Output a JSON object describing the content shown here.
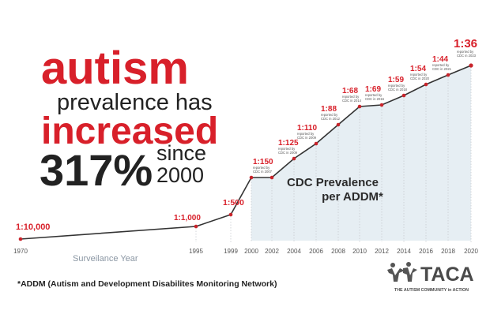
{
  "headline": {
    "word1": "autism",
    "line2": "prevalence has",
    "word3": "increased",
    "percent": "317%",
    "since": "since",
    "year": "2000"
  },
  "area_label_line1": "CDC Prevalence",
  "area_label_line2": "per ADDM*",
  "x_axis_label": "Surveilance Year",
  "footnote": "*ADDM (Autism and Development Disabilites Monitoring Network)",
  "logo": {
    "name": "TACA",
    "tagline": "THE AUTISM COMMUNITY in ACTION"
  },
  "colors": {
    "headline_red": "#d8202a",
    "headline_dark": "#222222",
    "line": "#333333",
    "marker": "#c8242b",
    "label_red": "#d8202a",
    "area": "#e6eef3",
    "axis_text": "#555555",
    "grid": "#c9ccd0"
  },
  "chart_data": {
    "type": "line",
    "title": "",
    "xlabel": "Surveilance Year",
    "ylabel": "",
    "x_ticks": [
      "1970",
      "1995",
      "1999",
      "2000",
      "2002",
      "2004",
      "2006",
      "2008",
      "2010",
      "2012",
      "2014",
      "2016",
      "2018",
      "2020"
    ],
    "series": [
      {
        "values": [
          {
            "x": "1970",
            "y": 0.0001,
            "label": "1:10,000",
            "note": ""
          },
          {
            "x": "1995",
            "y": 0.001,
            "label": "1:1,000",
            "note": ""
          },
          {
            "x": "1999",
            "y": 0.002,
            "label": "1:500",
            "note": ""
          },
          {
            "x": "2000",
            "y": 0.00667,
            "label": "1:150",
            "note": "reported by CDC in 2007"
          },
          {
            "x": "2002",
            "y": 0.00667,
            "label": "",
            "note": ""
          },
          {
            "x": "2004",
            "y": 0.008,
            "label": "1:125",
            "note": "reported by CDC in 2009"
          },
          {
            "x": "2006",
            "y": 0.00909,
            "label": "1:110",
            "note": "reported by CDC in 2009"
          },
          {
            "x": "2008",
            "y": 0.01136,
            "label": "1:88",
            "note": "reported by CDC in 2012"
          },
          {
            "x": "2010",
            "y": 0.01471,
            "label": "1:68",
            "note": "reported by CDC in 2014"
          },
          {
            "x": "2012",
            "y": 0.01449,
            "label": "1:69",
            "note": "reported by CDC in 2016"
          },
          {
            "x": "2014",
            "y": 0.01695,
            "label": "1:59",
            "note": "reported by CDC in 2018"
          },
          {
            "x": "2016",
            "y": 0.01852,
            "label": "1:54",
            "note": "reported by CDC in 2020"
          },
          {
            "x": "2018",
            "y": 0.02273,
            "label": "1:44",
            "note": "reported by CDC in 2021"
          },
          {
            "x": "2020",
            "y": 0.02778,
            "label": "1:36",
            "note": "reported by CDC in 2023"
          }
        ]
      }
    ]
  }
}
